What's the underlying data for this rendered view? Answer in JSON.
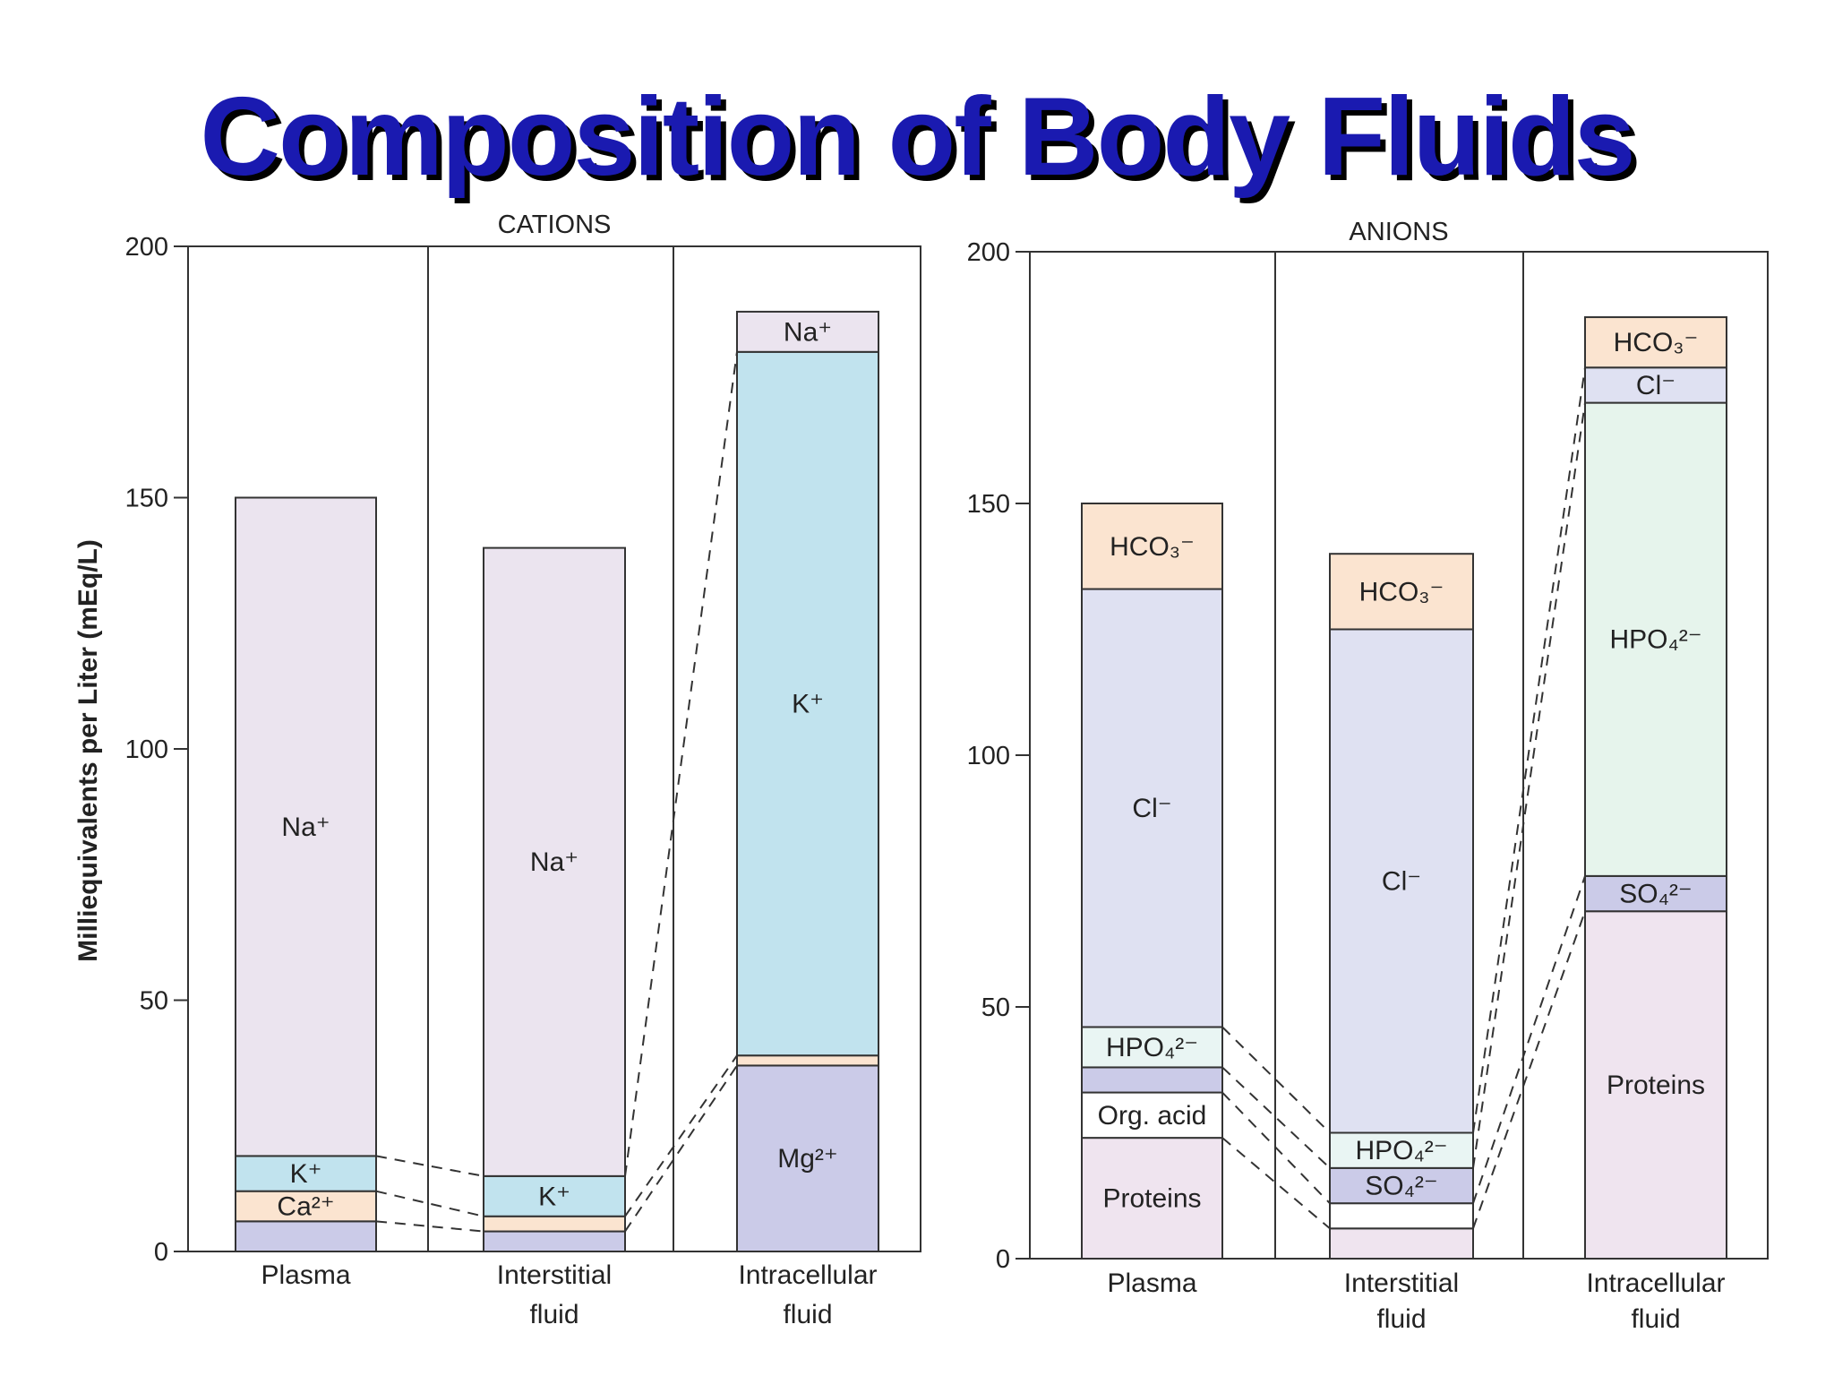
{
  "title": "Composition of Body Fluids",
  "chart_data": {
    "type": "bar",
    "stacked": true,
    "ylabel": "Milliequivalents per Liter (mEq/L)",
    "ylim": [
      0,
      200
    ],
    "y_ticks": [
      "0",
      "50",
      "100",
      "150",
      "200"
    ],
    "categories": [
      {
        "line1": "Plasma",
        "line2": ""
      },
      {
        "line1": "Interstitial",
        "line2": "fluid"
      },
      {
        "line1": "Intracellular",
        "line2": "fluid"
      }
    ],
    "panels": [
      {
        "title": "CATIONS",
        "bars": [
          {
            "segments": [
              {
                "ion": "",
                "value": 6,
                "color": "#cbcbe8"
              },
              {
                "ion": "Ca²⁺",
                "value": 6,
                "color": "#fbe4d0"
              },
              {
                "ion": "K⁺",
                "value": 7,
                "color": "#c1e3ee"
              },
              {
                "ion": "Na⁺",
                "value": 131,
                "color": "#ebe4ef"
              }
            ]
          },
          {
            "segments": [
              {
                "ion": "",
                "value": 4,
                "color": "#cbcbe8"
              },
              {
                "ion": "",
                "value": 3,
                "color": "#fbe4d0"
              },
              {
                "ion": "K⁺",
                "value": 8,
                "color": "#c1e3ee"
              },
              {
                "ion": "Na⁺",
                "value": 125,
                "color": "#ebe4ef"
              }
            ]
          },
          {
            "segments": [
              {
                "ion": "Mg²⁺",
                "value": 37,
                "color": "#cbcbe8"
              },
              {
                "ion": "",
                "value": 2,
                "color": "#fbe4d0"
              },
              {
                "ion": "K⁺",
                "value": 140,
                "color": "#c1e3ee"
              },
              {
                "ion": "Na⁺",
                "value": 8,
                "color": "#ebe4ef"
              }
            ]
          }
        ]
      },
      {
        "title": "ANIONS",
        "bars": [
          {
            "segments": [
              {
                "ion": "Proteins",
                "value": 24,
                "color": "#efe4ef"
              },
              {
                "ion": "Org. acid",
                "value": 9,
                "color": "#ffffff"
              },
              {
                "ion": "",
                "value": 5,
                "color": "#cbcbe8"
              },
              {
                "ion": "HPO₄²⁻",
                "value": 8,
                "color": "#e9f5f3"
              },
              {
                "ion": "Cl⁻",
                "value": 87,
                "color": "#dfe1f2"
              },
              {
                "ion": "HCO₃⁻",
                "value": 17,
                "color": "#fbe4d0"
              }
            ]
          },
          {
            "segments": [
              {
                "ion": "",
                "value": 6,
                "color": "#efe4ef"
              },
              {
                "ion": "",
                "value": 5,
                "color": "#ffffff"
              },
              {
                "ion": "SO₄²⁻",
                "value": 7,
                "color": "#cbcbe8"
              },
              {
                "ion": "HPO₄²⁻",
                "value": 7,
                "color": "#e9f5f3"
              },
              {
                "ion": "Cl⁻",
                "value": 100,
                "color": "#dfe1f2"
              },
              {
                "ion": "HCO₃⁻",
                "value": 15,
                "color": "#fbe4d0"
              }
            ]
          },
          {
            "segments": [
              {
                "ion": "Proteins",
                "value": 69,
                "color": "#efe4ef"
              },
              {
                "ion": "SO₄²⁻",
                "value": 7,
                "color": "#cbcbe8"
              },
              {
                "ion": "HPO₄²⁻",
                "value": 94,
                "color": "#e6f4ec"
              },
              {
                "ion": "Cl⁻",
                "value": 7,
                "color": "#dfe1f2"
              },
              {
                "ion": "HCO₃⁻",
                "value": 10,
                "color": "#fbe4d0"
              }
            ]
          }
        ]
      }
    ]
  }
}
